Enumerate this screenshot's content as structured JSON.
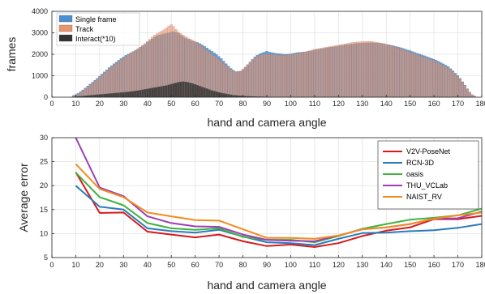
{
  "chart_data": [
    {
      "type": "bar",
      "xlabel": "hand and camera angle",
      "ylabel": "frames",
      "xlim": [
        0,
        180
      ],
      "ylim": [
        0,
        4000
      ],
      "xticks": [
        0,
        10,
        20,
        30,
        40,
        50,
        60,
        70,
        80,
        90,
        100,
        110,
        120,
        130,
        140,
        150,
        160,
        170,
        180
      ],
      "yticks": [
        0,
        1000,
        2000,
        3000,
        4000
      ],
      "grid": true,
      "legend_position": "top-left",
      "series": [
        {
          "name": "Single frame",
          "color": "#4a8fcf"
        },
        {
          "name": "Track",
          "color": "#e8956e"
        },
        {
          "name": "Interact(*10)",
          "color": "#333333"
        }
      ],
      "bin_width": 1,
      "x": [
        9,
        10,
        11,
        12,
        13,
        14,
        15,
        16,
        17,
        18,
        19,
        20,
        21,
        22,
        23,
        24,
        25,
        26,
        27,
        28,
        29,
        30,
        31,
        32,
        33,
        34,
        35,
        36,
        37,
        38,
        39,
        40,
        41,
        42,
        43,
        44,
        45,
        46,
        47,
        48,
        49,
        50,
        51,
        52,
        53,
        54,
        55,
        56,
        57,
        58,
        59,
        60,
        61,
        62,
        63,
        64,
        65,
        66,
        67,
        68,
        69,
        70,
        71,
        72,
        73,
        74,
        75,
        76,
        77,
        78,
        79,
        80,
        81,
        82,
        83,
        84,
        85,
        86,
        87,
        88,
        89,
        90,
        91,
        92,
        93,
        94,
        95,
        96,
        97,
        98,
        99,
        100,
        101,
        102,
        103,
        104,
        105,
        106,
        107,
        108,
        109,
        110,
        111,
        112,
        113,
        114,
        115,
        116,
        117,
        118,
        119,
        120,
        121,
        122,
        123,
        124,
        125,
        126,
        127,
        128,
        129,
        130,
        131,
        132,
        133,
        134,
        135,
        136,
        137,
        138,
        139,
        140,
        141,
        142,
        143,
        144,
        145,
        146,
        147,
        148,
        149,
        150,
        151,
        152,
        153,
        154,
        155,
        156,
        157,
        158,
        159,
        160,
        161,
        162,
        163,
        164,
        165,
        166,
        167,
        168,
        169,
        170,
        171,
        172,
        173,
        174,
        175,
        176,
        177
      ],
      "single_frame": [
        80,
        120,
        180,
        260,
        340,
        430,
        520,
        610,
        700,
        790,
        880,
        980,
        1080,
        1180,
        1280,
        1380,
        1470,
        1560,
        1640,
        1720,
        1800,
        1880,
        1950,
        2010,
        2070,
        2130,
        2190,
        2260,
        2330,
        2400,
        2470,
        2560,
        2640,
        2720,
        2800,
        2860,
        2900,
        2920,
        2950,
        2980,
        3010,
        3040,
        3050,
        3030,
        2980,
        2900,
        2820,
        2750,
        2700,
        2660,
        2620,
        2580,
        2550,
        2500,
        2440,
        2370,
        2290,
        2210,
        2140,
        2070,
        1990,
        1900,
        1800,
        1680,
        1560,
        1450,
        1340,
        1260,
        1190,
        1200,
        1220,
        1300,
        1400,
        1520,
        1640,
        1760,
        1880,
        1960,
        2020,
        2060,
        2100,
        2150,
        2110,
        2080,
        2060,
        2040,
        2030,
        2020,
        2010,
        2000,
        2010,
        2020,
        2040,
        2060,
        2080,
        2090,
        2100,
        2110,
        2130,
        2150,
        2170,
        2200,
        2220,
        2240,
        2250,
        2270,
        2300,
        2320,
        2330,
        2340,
        2360,
        2380,
        2400,
        2420,
        2440,
        2450,
        2460,
        2480,
        2500,
        2510,
        2520,
        2520,
        2530,
        2530,
        2540,
        2540,
        2530,
        2520,
        2520,
        2500,
        2480,
        2460,
        2440,
        2420,
        2400,
        2370,
        2340,
        2310,
        2280,
        2240,
        2200,
        2170,
        2130,
        2090,
        2050,
        2010,
        1970,
        1930,
        1890,
        1850,
        1810,
        1770,
        1720,
        1670,
        1610,
        1550,
        1490,
        1420,
        1330,
        1230,
        1120,
        1010,
        880,
        720,
        560,
        380,
        220,
        110,
        50
      ],
      "track": [
        60,
        90,
        140,
        210,
        290,
        380,
        470,
        560,
        650,
        740,
        830,
        930,
        1030,
        1130,
        1230,
        1320,
        1410,
        1500,
        1580,
        1660,
        1740,
        1820,
        1900,
        1970,
        2040,
        2110,
        2180,
        2260,
        2340,
        2420,
        2500,
        2600,
        2700,
        2800,
        2890,
        2960,
        3020,
        3080,
        3150,
        3230,
        3320,
        3380,
        3300,
        3160,
        3050,
        2970,
        2900,
        2830,
        2770,
        2710,
        2650,
        2590,
        2520,
        2450,
        2370,
        2280,
        2190,
        2100,
        2020,
        1940,
        1860,
        1770,
        1680,
        1580,
        1480,
        1380,
        1290,
        1220,
        1170,
        1180,
        1220,
        1300,
        1400,
        1510,
        1620,
        1730,
        1830,
        1900,
        1950,
        1980,
        2000,
        2010,
        2000,
        1990,
        1980,
        1970,
        1960,
        1950,
        1950,
        1960,
        1970,
        1980,
        2000,
        2020,
        2040,
        2060,
        2080,
        2110,
        2140,
        2170,
        2200,
        2230,
        2250,
        2270,
        2290,
        2310,
        2330,
        2350,
        2370,
        2390,
        2410,
        2430,
        2450,
        2470,
        2490,
        2510,
        2530,
        2550,
        2560,
        2570,
        2580,
        2590,
        2600,
        2600,
        2600,
        2590,
        2580,
        2560,
        2540,
        2520,
        2500,
        2470,
        2440,
        2410,
        2380,
        2340,
        2300,
        2260,
        2220,
        2180,
        2140,
        2100,
        2060,
        2020,
        1980,
        1940,
        1900,
        1860,
        1820,
        1780,
        1740,
        1700,
        1650,
        1600,
        1540,
        1480,
        1420,
        1350,
        1270,
        1180,
        1080,
        970,
        850,
        710,
        560,
        400,
        250,
        130,
        60
      ],
      "interact": [
        20,
        30,
        40,
        50,
        60,
        70,
        80,
        90,
        100,
        110,
        120,
        130,
        140,
        150,
        160,
        170,
        180,
        190,
        200,
        210,
        220,
        230,
        240,
        250,
        265,
        280,
        295,
        310,
        330,
        350,
        370,
        390,
        410,
        430,
        450,
        470,
        490,
        510,
        530,
        550,
        580,
        610,
        640,
        670,
        700,
        720,
        730,
        720,
        700,
        670,
        640,
        600,
        560,
        520,
        480,
        440,
        400,
        360,
        320,
        290,
        260,
        230,
        200,
        180,
        160,
        140,
        120,
        100,
        90,
        80,
        70,
        60,
        55,
        50,
        45,
        40,
        36,
        32,
        28,
        25,
        22,
        20,
        18,
        16,
        14,
        12,
        10,
        10,
        10,
        10,
        10,
        10,
        10,
        10,
        10,
        10,
        10,
        10,
        10,
        10,
        10,
        10,
        10,
        10,
        10,
        10,
        10,
        10,
        10,
        10,
        10,
        10,
        10,
        10,
        10,
        10,
        10,
        10,
        10,
        10,
        10,
        10,
        10,
        10,
        10,
        10,
        10,
        10,
        10,
        10,
        10,
        10,
        10,
        10,
        10,
        10,
        10,
        10,
        10,
        10,
        10,
        10,
        10,
        10,
        10,
        10,
        10,
        10,
        10,
        10,
        10,
        10,
        10,
        10,
        10,
        10,
        10,
        10,
        10,
        10,
        10,
        10,
        10,
        10,
        10,
        10,
        10,
        10,
        10
      ]
    },
    {
      "type": "line",
      "xlabel": "hand and camera angle",
      "ylabel": "Average error",
      "xlim": [
        0,
        180
      ],
      "ylim": [
        5,
        30
      ],
      "xticks": [
        0,
        10,
        20,
        30,
        40,
        50,
        60,
        70,
        80,
        90,
        100,
        110,
        120,
        130,
        140,
        150,
        160,
        170,
        180
      ],
      "yticks": [
        5,
        10,
        15,
        20,
        25,
        30
      ],
      "grid": true,
      "legend_position": "top-right",
      "x": [
        10,
        20,
        30,
        40,
        50,
        60,
        70,
        80,
        90,
        100,
        110,
        120,
        130,
        140,
        150,
        160,
        170,
        180
      ],
      "series": [
        {
          "name": "V2V-PoseNet",
          "color": "#d7191c",
          "values": [
            22.8,
            14.3,
            14.4,
            10.4,
            9.8,
            9.2,
            9.8,
            8.4,
            7.4,
            7.7,
            7.2,
            8.0,
            9.5,
            10.6,
            11.3,
            13.0,
            13.0,
            13.7
          ]
        },
        {
          "name": "RCN-3D",
          "color": "#2b7bba",
          "values": [
            20.0,
            15.6,
            15.0,
            11.1,
            10.5,
            10.2,
            10.8,
            9.4,
            8.2,
            8.0,
            7.6,
            8.9,
            10.1,
            10.2,
            10.5,
            10.7,
            11.2,
            12.0
          ]
        },
        {
          "name": "oasis",
          "color": "#3fb23f",
          "values": [
            22.7,
            17.6,
            15.9,
            12.2,
            11.1,
            10.8,
            11.1,
            9.3,
            8.7,
            8.7,
            8.2,
            9.5,
            11.0,
            12.0,
            12.9,
            13.3,
            13.8,
            15.2
          ]
        },
        {
          "name": "THU_VCLab",
          "color": "#9b3fb5",
          "values": [
            30.0,
            19.6,
            17.8,
            13.6,
            12.2,
            11.5,
            11.4,
            9.8,
            8.7,
            8.5,
            8.4,
            9.6,
            10.9,
            11.3,
            12.0,
            13.1,
            13.2,
            14.6
          ]
        },
        {
          "name": "NAIST_RV",
          "color": "#f28c1e",
          "values": [
            24.5,
            19.3,
            17.6,
            14.4,
            13.6,
            12.8,
            12.7,
            10.9,
            9.1,
            9.1,
            8.9,
            9.6,
            10.9,
            11.3,
            12.0,
            13.1,
            13.8,
            14.4
          ]
        }
      ]
    }
  ]
}
